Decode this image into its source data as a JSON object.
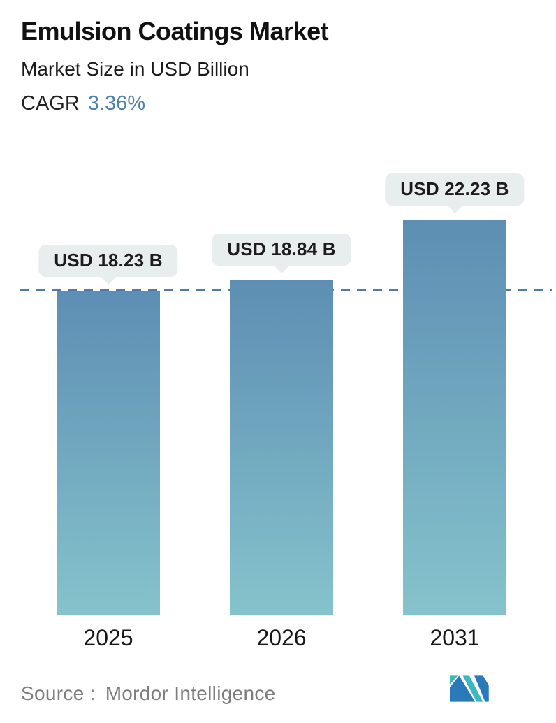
{
  "header": {
    "title": "Emulsion Coatings Market",
    "subtitle": "Market Size in USD Billion",
    "cagr_label": "CAGR",
    "cagr_value": "3.36%"
  },
  "chart_data": {
    "type": "bar",
    "title": "Emulsion Coatings Market",
    "subtitle": "Market Size in USD Billion",
    "cagr": "3.36%",
    "categories": [
      "2025",
      "2026",
      "2031"
    ],
    "values": [
      18.23,
      18.84,
      22.23
    ],
    "bar_labels": [
      "USD 18.23 B",
      "USD 18.84 B",
      "USD 22.23 B"
    ],
    "unit": "USD Billion",
    "ylim": [
      0,
      24
    ],
    "grid": false,
    "legend": false,
    "reference_line_value": 18.23,
    "reference_line_style": "dashed",
    "colors": {
      "bar_gradient_top": "#5d8eb3",
      "bar_gradient_bottom": "#85c3cc",
      "dashed_line": "#4e7ca6",
      "accent_blue": "#4f83ad",
      "tooltip_bg": "#e8edee"
    }
  },
  "footer": {
    "source_label": "Source :",
    "source_value": "Mordor Intelligence",
    "logo_name": "mordor-intelligence-logo"
  }
}
